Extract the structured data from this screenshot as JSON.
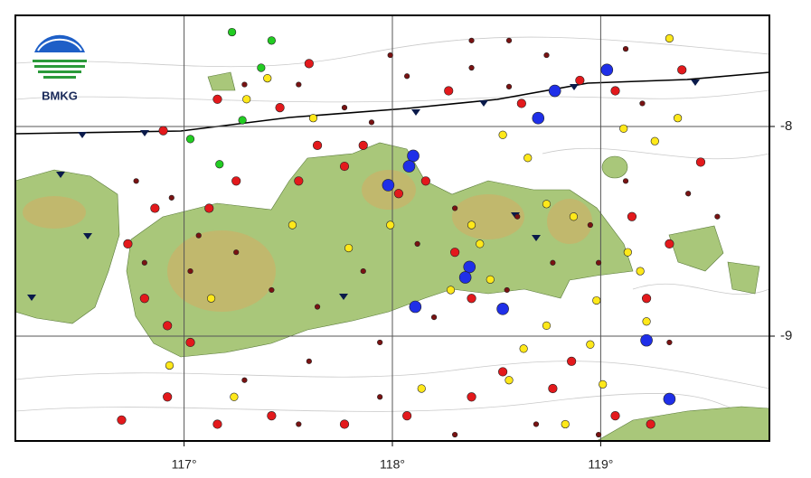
{
  "logo": "BMKG",
  "chart_data": {
    "type": "scatter",
    "xlim": [
      116.19,
      119.81
    ],
    "ylim": [
      -9.5,
      -7.47
    ],
    "xticks": [
      {
        "value": 117,
        "label": "117°"
      },
      {
        "value": 118,
        "label": "118°"
      },
      {
        "value": 119,
        "label": "119°"
      }
    ],
    "yticks": [
      -8,
      -9
    ],
    "grid": true,
    "series": [
      {
        "color": "#7a1212",
        "x": [
          117.29,
          117.55,
          117.9,
          118.07,
          118.38,
          118.56,
          118.74,
          119.12,
          119.2,
          119.42,
          119.56,
          119.12,
          118.99,
          118.77,
          118.55,
          118.2,
          117.94,
          117.6,
          117.29,
          117.03,
          116.81,
          116.77,
          116.94,
          117.07,
          117.25,
          117.42,
          117.64,
          117.86,
          118.12,
          118.3,
          118.6,
          118.95,
          119.33,
          118.99,
          118.69,
          118.3,
          117.94,
          117.55,
          118.56,
          118.38,
          117.99,
          117.77
        ],
        "values": [
          -7.8,
          -7.8,
          -7.98,
          -7.76,
          -7.72,
          -7.81,
          -7.66,
          -7.63,
          -7.89,
          -8.32,
          -8.43,
          -8.26,
          -8.65,
          -8.65,
          -8.78,
          -8.91,
          -9.03,
          -9.12,
          -9.21,
          -8.69,
          -8.65,
          -8.26,
          -8.34,
          -8.52,
          -8.6,
          -8.78,
          -8.86,
          -8.69,
          -8.56,
          -8.39,
          -8.43,
          -8.47,
          -9.03,
          -9.47,
          -9.42,
          -9.47,
          -9.29,
          -9.42,
          -7.59,
          -7.59,
          -7.66,
          -7.91
        ]
      },
      {
        "color": "#e3191c",
        "x": [
          119.39,
          119.07,
          118.9,
          118.62,
          118.27,
          117.86,
          117.77,
          117.55,
          117.25,
          117.12,
          116.86,
          116.73,
          116.81,
          116.92,
          117.03,
          116.92,
          116.7,
          117.16,
          117.42,
          117.77,
          118.07,
          118.38,
          118.53,
          118.77,
          119.07,
          119.24,
          118.86,
          119.15,
          119.33,
          119.22,
          118.38,
          118.3,
          118.03,
          118.16,
          117.64,
          117.46,
          117.16,
          116.9,
          117.6,
          119.48
        ],
        "values": [
          -7.73,
          -7.83,
          -7.78,
          -7.89,
          -7.83,
          -8.09,
          -8.19,
          -8.26,
          -8.26,
          -8.39,
          -8.39,
          -8.56,
          -8.82,
          -8.95,
          -9.03,
          -9.29,
          -9.4,
          -9.42,
          -9.38,
          -9.42,
          -9.38,
          -9.29,
          -9.17,
          -9.25,
          -9.38,
          -9.42,
          -9.12,
          -8.43,
          -8.56,
          -8.82,
          -8.82,
          -8.6,
          -8.32,
          -8.26,
          -8.09,
          -7.91,
          -7.87,
          -8.02,
          -7.7,
          -8.17
        ]
      },
      {
        "color": "#ffe81a",
        "x": [
          119.33,
          119.37,
          119.26,
          119.01,
          118.95,
          119.22,
          116.93,
          117.13,
          117.52,
          117.79,
          118.38,
          118.42,
          118.47,
          118.28,
          118.63,
          118.74,
          118.87,
          119.13,
          119.19,
          118.98,
          118.53,
          118.65,
          117.62,
          117.4,
          117.3,
          117.99,
          118.14,
          117.24,
          118.56,
          118.83,
          119.11,
          118.74
        ],
        "values": [
          -7.58,
          -7.96,
          -8.07,
          -9.23,
          -9.04,
          -8.93,
          -9.14,
          -8.82,
          -8.47,
          -8.58,
          -8.47,
          -8.56,
          -8.73,
          -8.78,
          -9.06,
          -8.95,
          -8.43,
          -8.6,
          -8.69,
          -8.83,
          -8.04,
          -8.15,
          -7.96,
          -7.77,
          -7.87,
          -8.47,
          -9.25,
          -9.29,
          -9.21,
          -9.42,
          -8.01,
          -8.37
        ]
      },
      {
        "color": "#22cc22",
        "x": [
          117.37,
          117.28,
          117.03,
          117.17,
          117.42,
          117.23
        ],
        "values": [
          -7.72,
          -7.97,
          -8.06,
          -8.18,
          -7.59,
          -7.55
        ]
      },
      {
        "color": "#1f2fe8",
        "x": [
          119.03,
          118.78,
          118.7,
          118.1,
          118.08,
          117.98,
          118.37,
          118.35,
          118.11,
          118.53,
          119.22,
          119.33
        ],
        "values": [
          -7.73,
          -7.83,
          -7.96,
          -8.14,
          -8.19,
          -8.28,
          -8.67,
          -8.72,
          -8.86,
          -8.87,
          -9.02,
          -9.3
        ]
      }
    ]
  }
}
